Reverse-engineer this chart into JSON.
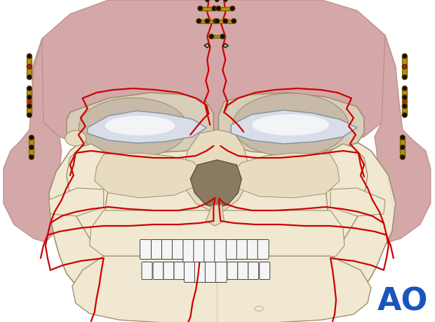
{
  "background_color": "#ffffff",
  "ao_text": "AO",
  "ao_color": "#1a55bb",
  "ao_fontsize": 32,
  "figsize": [
    6.2,
    4.59
  ],
  "dpi": 100,
  "skull_bone_color": "#f0e8d0",
  "skull_bone2_color": "#e8dcc0",
  "pink_color": "#d4a8a8",
  "pink_dark": "#c09090",
  "red_color": "#cc0000",
  "gold_color": "#b89010",
  "gold_dark": "#7a6000",
  "eye_white": "#d8dde8",
  "eye_outline": "#8090a0",
  "nose_color": "#a89878",
  "nose_dark": "#7a6848",
  "tooth_white": "#f5f5f5",
  "bone_outline": "#a09070",
  "dark_gray": "#606050"
}
